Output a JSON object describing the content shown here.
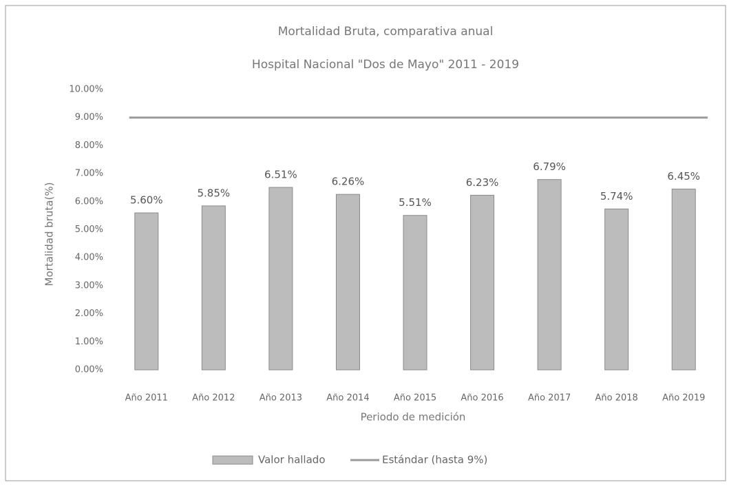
{
  "chart_data": {
    "type": "bar",
    "title": "Mortalidad Bruta, comparativa anual",
    "subtitle": "Hospital Nacional \"Dos de Mayo\" 2011 - 2019",
    "ylabel": "Mortalidad bruta(%)",
    "xlabel": "Periodo de medición",
    "categories": [
      "Año 2011",
      "Año 2012",
      "Año 2013",
      "Año 2014",
      "Año 2015",
      "Año 2016",
      "Año 2017",
      "Año 2018",
      "Año 2019"
    ],
    "series": [
      {
        "name": "Valor hallado",
        "type": "bar",
        "color": "#bcbcbc",
        "values": [
          5.6,
          5.85,
          6.51,
          6.26,
          5.51,
          6.23,
          6.79,
          5.74,
          6.45
        ],
        "value_labels": [
          "5.60%",
          "5.85%",
          "6.51%",
          "6.26%",
          "5.51%",
          "6.23%",
          "6.79%",
          "5.74%",
          "6.45%"
        ]
      },
      {
        "name": "Estándar (hasta 9%)",
        "type": "line",
        "color": "#9a9a9a",
        "values": [
          9,
          9,
          9,
          9,
          9,
          9,
          9,
          9,
          9
        ]
      }
    ],
    "ylim": [
      0,
      10
    ],
    "yticks": [
      {
        "value": 0,
        "label": "0.00%"
      },
      {
        "value": 1,
        "label": "1.00%"
      },
      {
        "value": 2,
        "label": "2.00%"
      },
      {
        "value": 3,
        "label": "3.00%"
      },
      {
        "value": 4,
        "label": "4.00%"
      },
      {
        "value": 5,
        "label": "5.00%"
      },
      {
        "value": 6,
        "label": "6.00%"
      },
      {
        "value": 7,
        "label": "7.00%"
      },
      {
        "value": 8,
        "label": "8.00%"
      },
      {
        "value": 9,
        "label": "9.00%"
      },
      {
        "value": 10,
        "label": "10.00%"
      }
    ],
    "grid": false,
    "legend": "bottom"
  }
}
